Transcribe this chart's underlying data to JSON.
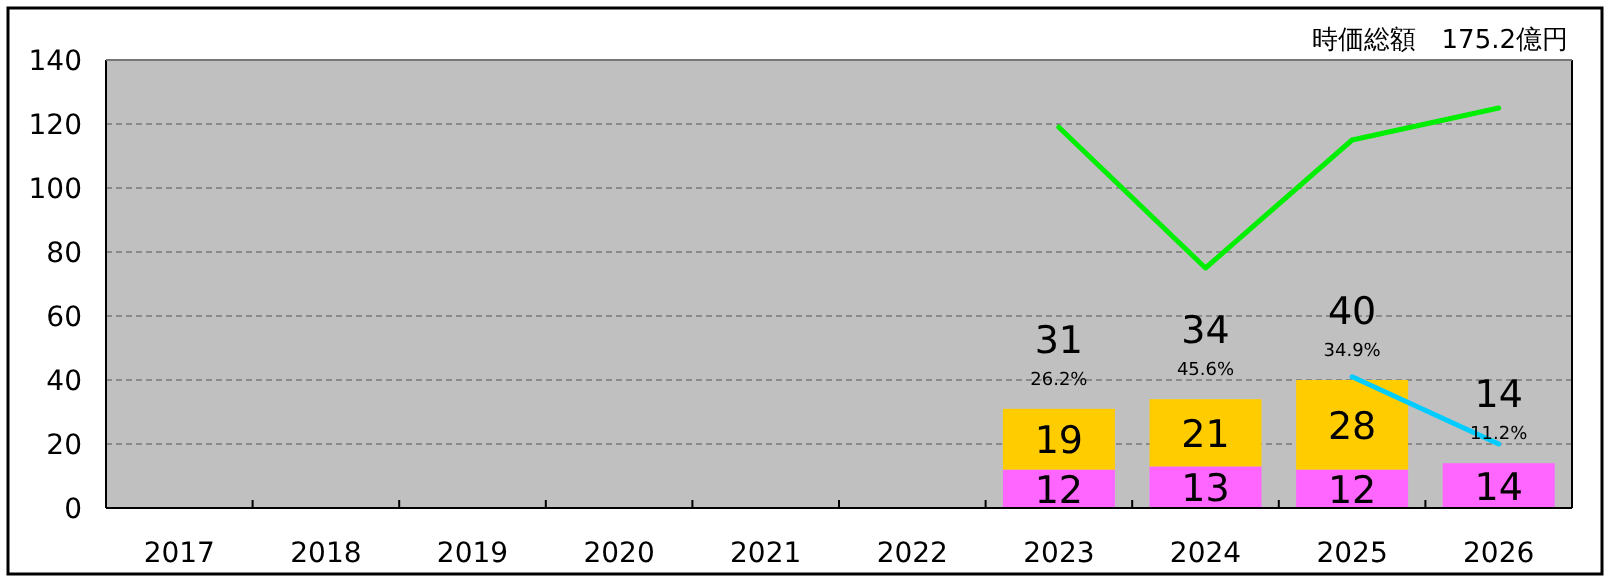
{
  "chart_data": {
    "type": "bar",
    "title": "時価総額　175.2億円",
    "categories": [
      "2017",
      "2018",
      "2019",
      "2020",
      "2021",
      "2022",
      "2023",
      "2024",
      "2025",
      "2026"
    ],
    "stacked": true,
    "grid": "y",
    "ylim": [
      0,
      140
    ],
    "yticks": [
      0,
      20,
      40,
      60,
      80,
      100,
      120,
      140
    ],
    "series": [
      {
        "color": "#ff66ff",
        "values": [
          null,
          null,
          null,
          null,
          null,
          null,
          12,
          13,
          12,
          14
        ],
        "value_labels": [
          null,
          null,
          null,
          null,
          null,
          null,
          "12",
          "13",
          "12",
          "14"
        ]
      },
      {
        "color": "#ffcc00",
        "values": [
          null,
          null,
          null,
          null,
          null,
          null,
          19,
          21,
          28,
          null
        ],
        "value_labels": [
          null,
          null,
          null,
          null,
          null,
          null,
          "19",
          "21",
          "28",
          null
        ]
      },
      {
        "type": "line",
        "color": "#00ee00",
        "values": [
          null,
          null,
          null,
          null,
          null,
          null,
          119,
          75,
          115,
          125
        ]
      },
      {
        "type": "line",
        "color": "#00ccff",
        "values": [
          null,
          null,
          null,
          null,
          null,
          null,
          null,
          null,
          41,
          20
        ]
      }
    ],
    "totals": [
      null,
      null,
      null,
      null,
      null,
      null,
      "31",
      "34",
      "40",
      "14"
    ],
    "annotations": [
      "26.2%",
      "45.6%",
      "34.9%",
      "11.2%"
    ]
  }
}
